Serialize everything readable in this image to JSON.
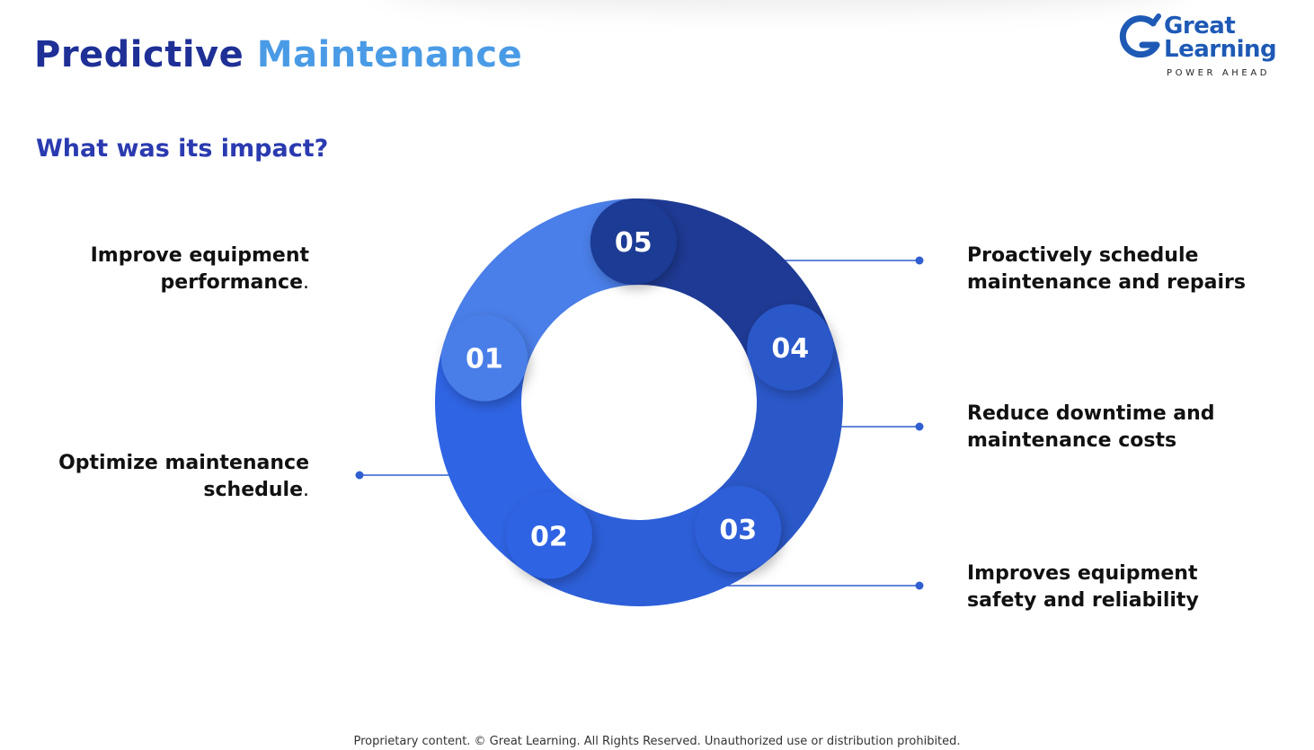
{
  "header": {
    "title_part1": "Predictive",
    "title_part2": "Maintenance"
  },
  "logo": {
    "line1": "Great",
    "line2": "Learning",
    "tagline": "POWER AHEAD"
  },
  "subtitle": "What was its impact?",
  "diagram": {
    "type": "cycle",
    "segments": [
      {
        "number": "01",
        "color": "#4a7ee8"
      },
      {
        "number": "02",
        "color": "#2f64e4"
      },
      {
        "number": "03",
        "color": "#2d5fd9"
      },
      {
        "number": "04",
        "color": "#2b58c9"
      },
      {
        "number": "05",
        "color": "#1e3a94"
      }
    ],
    "labels": {
      "l1_line1": "Improve equipment",
      "l1_line2": "performance",
      "l2_line1": "Optimize maintenance",
      "l2_line2": "schedule",
      "r1_line1": "Proactively schedule",
      "r1_line2": "maintenance and repairs",
      "r2_line1": "Reduce downtime and",
      "r2_line2": "maintenance costs",
      "r3_line1": "Improves equipment",
      "r3_line2": "safety and reliability",
      "period": "."
    }
  },
  "footer": "Proprietary content. © Great Learning. All Rights Reserved. Unauthorized use or distribution prohibited."
}
